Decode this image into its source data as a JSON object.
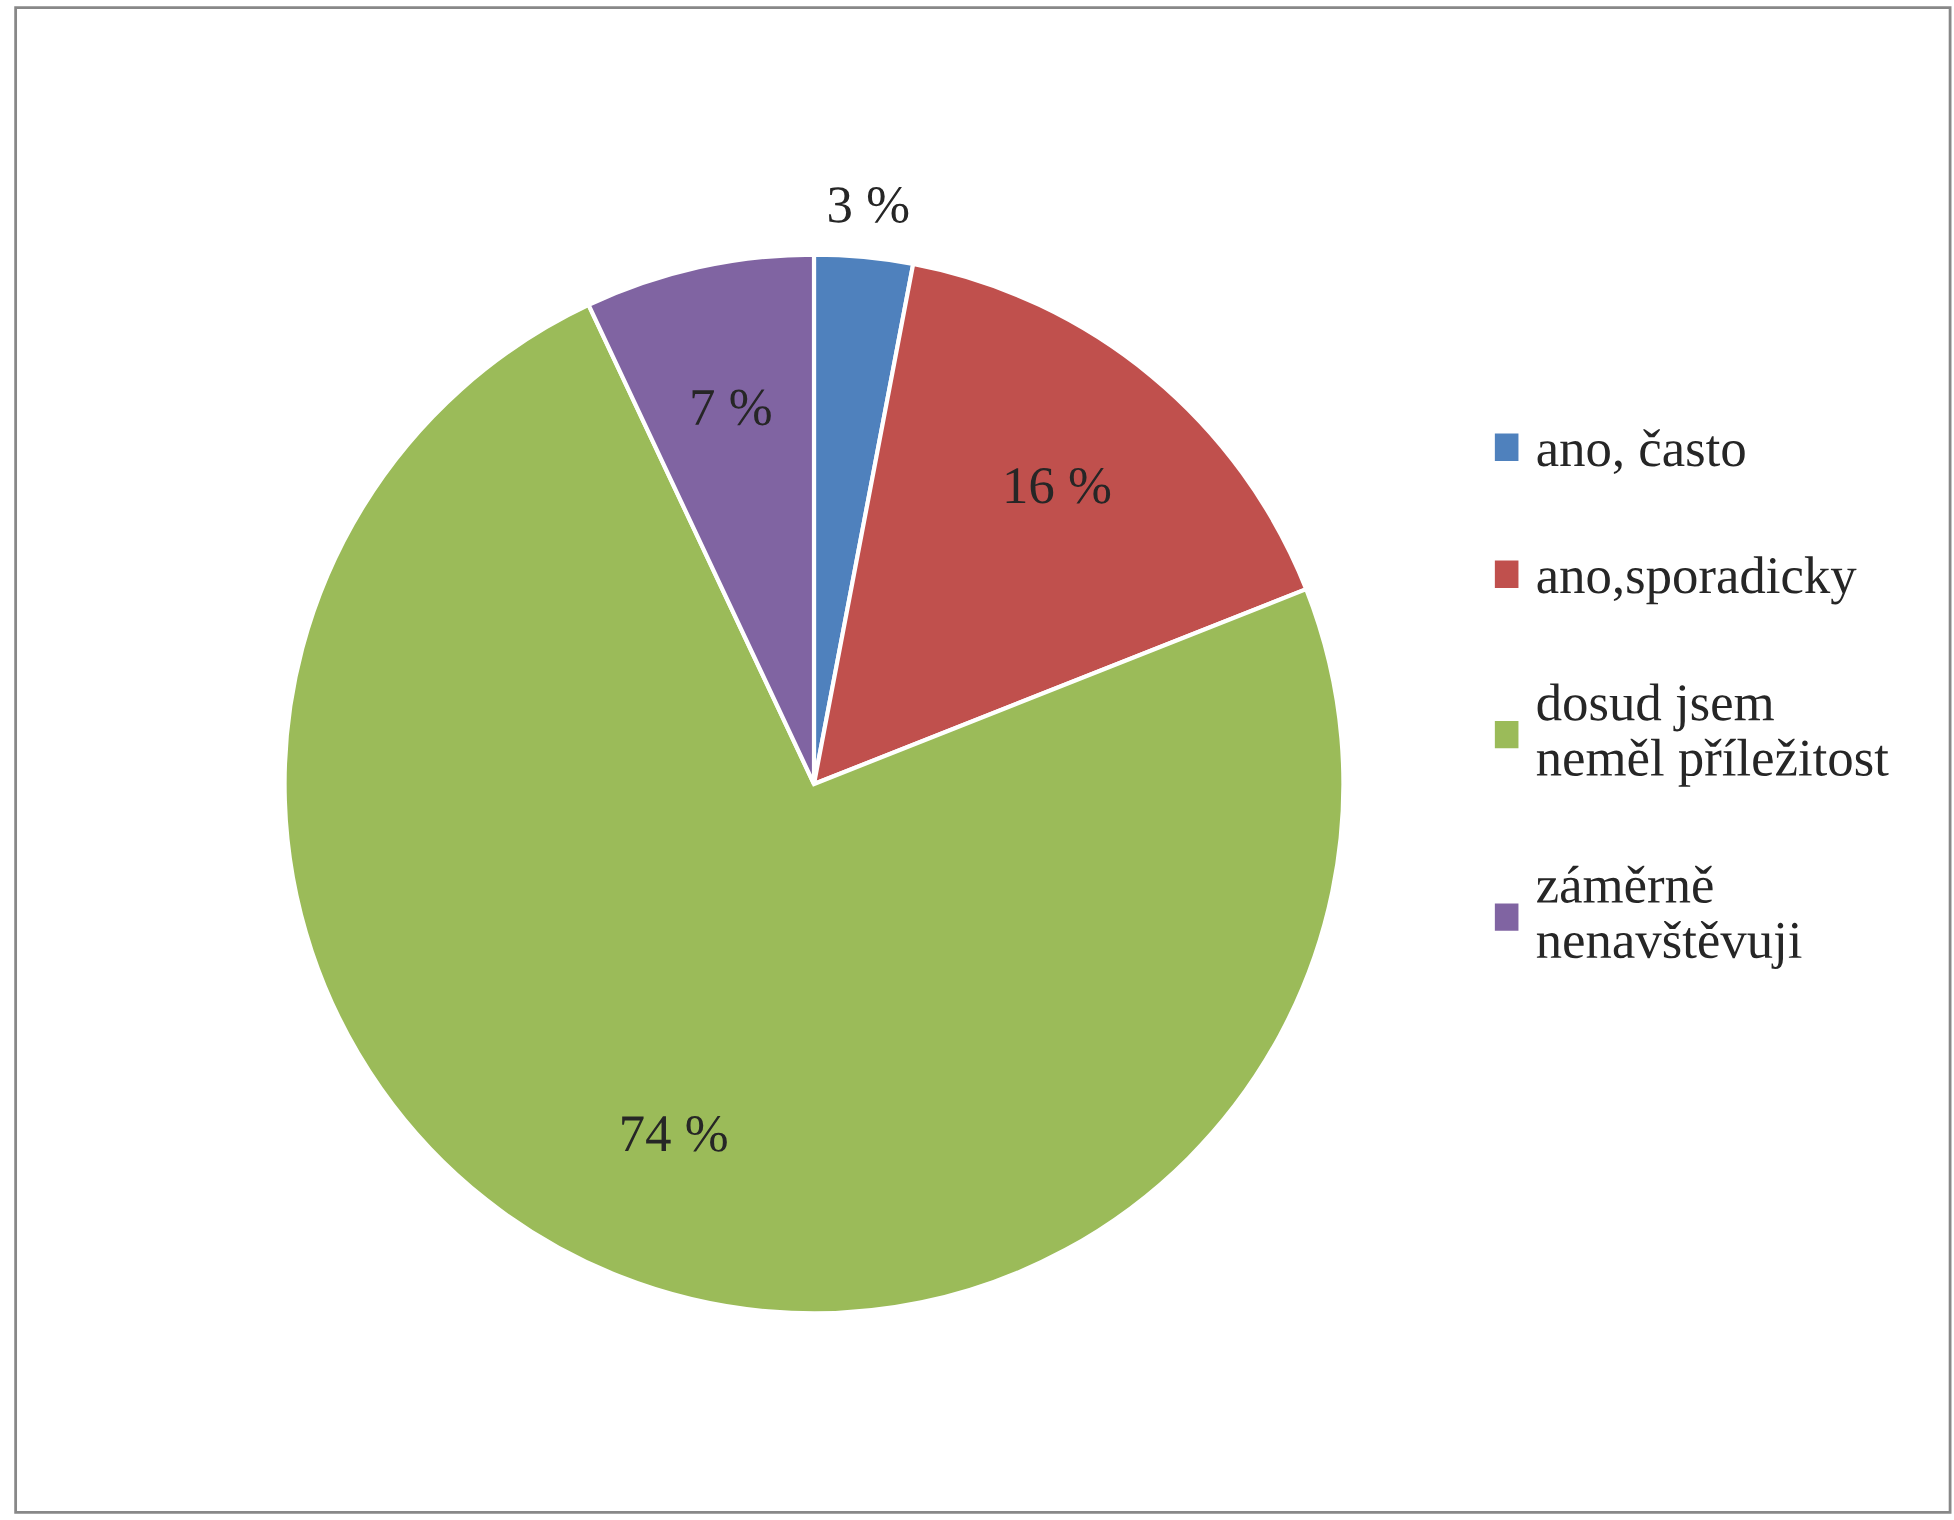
{
  "chart_data": {
    "type": "pie",
    "categories": [
      "ano, často",
      "ano,sporadicky",
      "dosud jsem\nneměl příležitost",
      "záměrně\nnenavštěvuji"
    ],
    "values": [
      3,
      16,
      74,
      7
    ],
    "colors": [
      "#4f81bd",
      "#c0504d",
      "#9bbb59",
      "#8064a2"
    ],
    "value_labels": [
      "3 %",
      "16 %",
      "74 %",
      "7 %"
    ],
    "legend": "right"
  }
}
